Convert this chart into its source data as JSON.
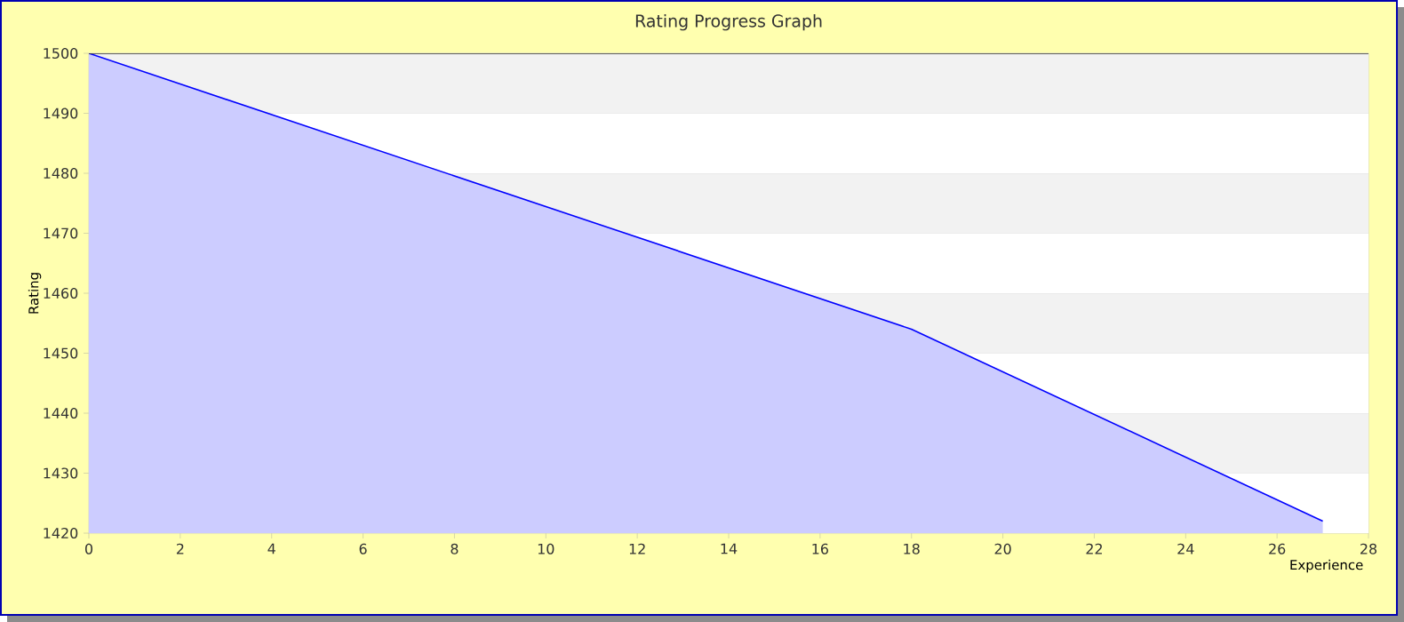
{
  "chart_data": {
    "type": "area",
    "title": "Rating Progress Graph",
    "xlabel": "Experience",
    "ylabel": "Rating",
    "x": [
      0,
      18,
      27
    ],
    "series": [
      {
        "color": "#0000ff",
        "values": [
          1500,
          1454,
          1422
        ]
      }
    ],
    "xlim": [
      0,
      28
    ],
    "ylim": [
      1420,
      1500
    ],
    "xticks": [
      0,
      2,
      4,
      6,
      8,
      10,
      12,
      14,
      16,
      18,
      20,
      22,
      24,
      26,
      28
    ],
    "yticks": [
      1420,
      1430,
      1440,
      1450,
      1460,
      1470,
      1480,
      1490,
      1500
    ],
    "grid": "y"
  }
}
